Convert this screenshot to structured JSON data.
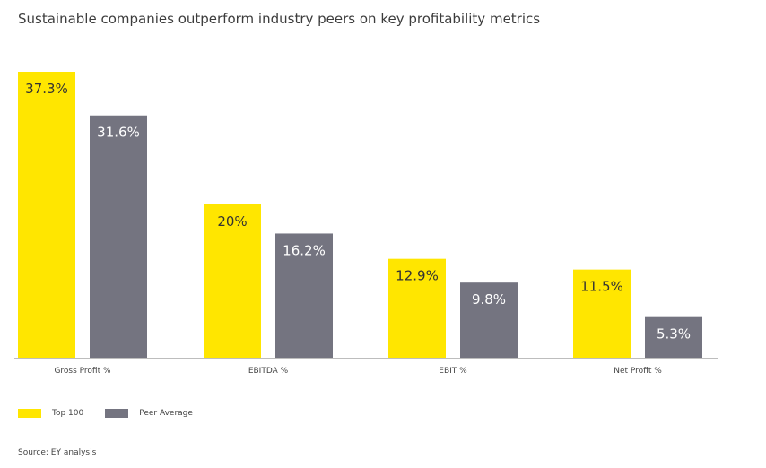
{
  "title": "Sustainable companies outperform industry peers on key profitability metrics",
  "source": "Source: EY analysis",
  "chart_data": {
    "type": "bar",
    "title": "Sustainable companies outperform industry peers on key profitability metrics",
    "categories": [
      "Gross Profit %",
      "EBITDA %",
      "EBIT %",
      "Net Profit %"
    ],
    "series": [
      {
        "name": "Top 100",
        "color": "#FFE600",
        "label_color": "#333333",
        "values": [
          37.3,
          20,
          12.9,
          11.5
        ],
        "labels": [
          "37.3%",
          "20%",
          "12.9%",
          "11.5%"
        ]
      },
      {
        "name": "Peer Average",
        "color": "#747480",
        "label_color": "#ffffff",
        "values": [
          31.6,
          16.2,
          9.8,
          5.3
        ],
        "labels": [
          "31.6%",
          "16.2%",
          "9.8%",
          "5.3%"
        ]
      }
    ],
    "ylim": [
      0,
      37.3
    ],
    "xlabel": "",
    "ylabel": "",
    "grid": false,
    "legend": "bottom-left"
  }
}
